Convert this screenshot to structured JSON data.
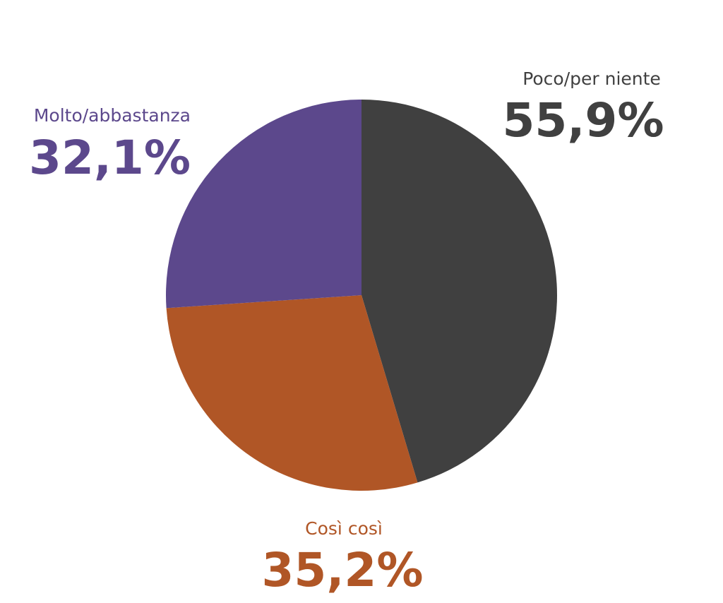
{
  "chart_data": {
    "type": "pie",
    "categories": [
      "Poco/per niente",
      "Così così",
      "Molto/abbastanza"
    ],
    "values": [
      55.9,
      35.2,
      32.1
    ],
    "value_labels": [
      "55,9%",
      "35,2%",
      "32,1%"
    ],
    "colors": [
      "#404040",
      "#b05626",
      "#5c488c"
    ]
  }
}
